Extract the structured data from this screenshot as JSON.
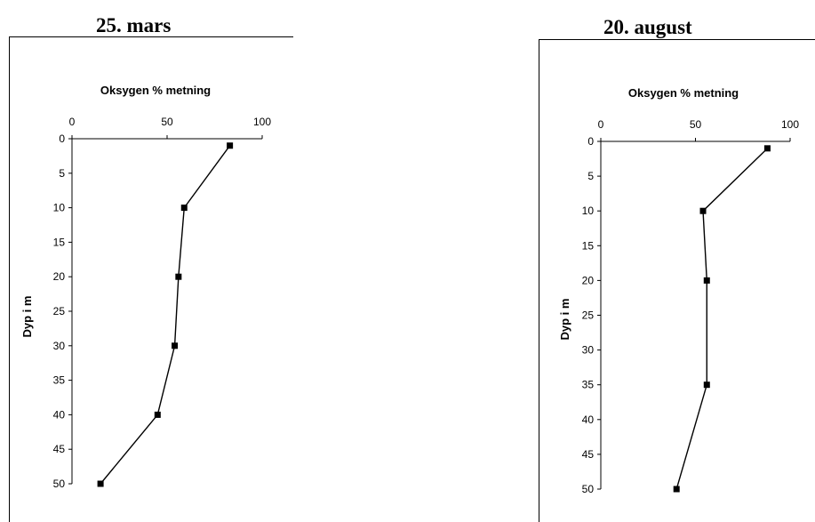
{
  "chart_data": [
    {
      "type": "line",
      "title": "25. mars",
      "xlabel": "Oksygen % metning",
      "ylabel": "Dyp i m",
      "xlim": [
        0,
        100
      ],
      "ylim": [
        0,
        50
      ],
      "x_axis_position": "top",
      "y_axis_inverted": true,
      "x_ticks": [
        0,
        50,
        100
      ],
      "y_ticks": [
        0,
        5,
        10,
        15,
        20,
        25,
        30,
        35,
        40,
        45,
        50
      ],
      "grid": false,
      "marker": "square",
      "series": [
        {
          "x": [
            83,
            59,
            56,
            54,
            45,
            15
          ],
          "y": [
            1,
            10,
            20,
            30,
            40,
            50
          ]
        }
      ]
    },
    {
      "type": "line",
      "title": "20. august",
      "xlabel": "Oksygen % metning",
      "ylabel": "Dyp i m",
      "xlim": [
        0,
        100
      ],
      "ylim": [
        0,
        50
      ],
      "x_axis_position": "top",
      "y_axis_inverted": true,
      "x_ticks": [
        0,
        50,
        100
      ],
      "y_ticks": [
        0,
        5,
        10,
        15,
        20,
        25,
        30,
        35,
        40,
        45,
        50
      ],
      "grid": false,
      "marker": "square",
      "series": [
        {
          "x": [
            88,
            54,
            56,
            56,
            40
          ],
          "y": [
            1,
            10,
            20,
            35,
            50
          ]
        }
      ]
    }
  ]
}
